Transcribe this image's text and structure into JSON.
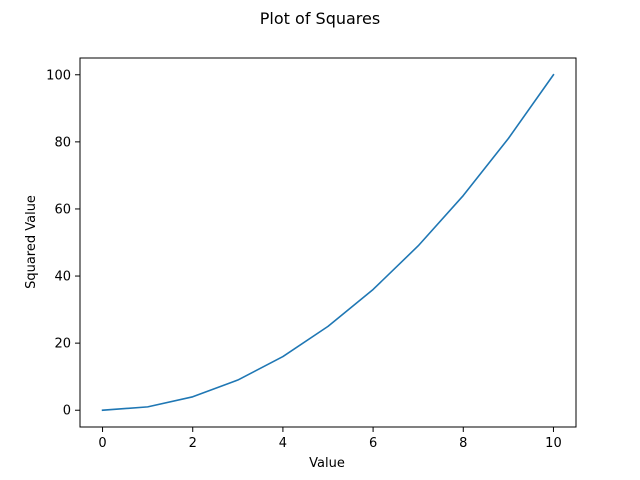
{
  "chart_data": {
    "type": "line",
    "title": "Plot of Squares",
    "xlabel": "Value",
    "ylabel": "Squared Value",
    "x": [
      0,
      1,
      2,
      3,
      4,
      5,
      6,
      7,
      8,
      9,
      10
    ],
    "series": [
      {
        "values": [
          0,
          1,
          4,
          9,
          16,
          25,
          36,
          49,
          64,
          81,
          100
        ],
        "color": "#1f77b4"
      }
    ],
    "xlim": [
      -0.5,
      10.5
    ],
    "ylim": [
      -5,
      105
    ],
    "xticks": [
      0,
      2,
      4,
      6,
      8,
      10
    ],
    "yticks": [
      0,
      20,
      40,
      60,
      80,
      100
    ],
    "grid": false,
    "legend": "none"
  }
}
